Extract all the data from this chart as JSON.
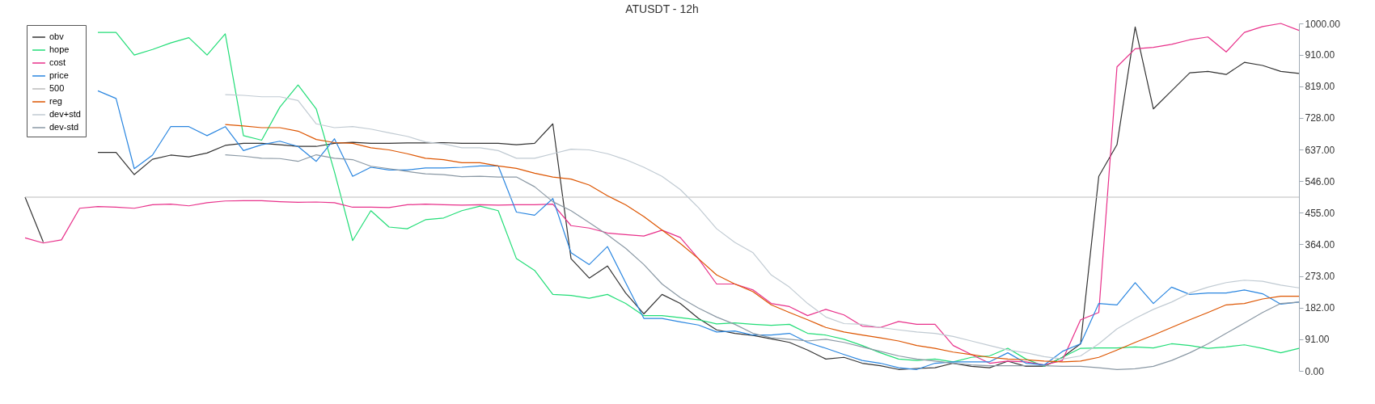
{
  "chart_data": {
    "type": "line",
    "title": "ATUSDT - 12h",
    "categories": [
      null,
      null,
      null,
      null,
      null,
      null,
      null,
      null,
      null,
      null,
      null,
      null,
      null,
      null,
      null,
      null,
      null,
      null,
      null,
      null,
      null,
      null,
      null,
      null,
      null,
      null,
      null,
      null,
      null,
      null,
      null,
      null,
      null,
      null,
      null,
      null,
      null,
      null,
      null,
      null,
      null,
      null,
      null,
      null,
      null,
      null,
      null,
      null,
      null,
      null,
      null,
      null,
      null,
      null,
      null,
      null,
      null,
      null,
      null,
      null,
      null,
      null,
      null,
      null,
      null,
      null,
      null,
      null,
      null,
      null,
      null
    ],
    "series": [
      {
        "name": "obv",
        "color": "#333333",
        "values": [
          500,
          371,
          null,
          null,
          629,
          629,
          565,
          609,
          621,
          616,
          627,
          649,
          655,
          655,
          651,
          646,
          646,
          655,
          658,
          655,
          655,
          656,
          656,
          657,
          655,
          655,
          655,
          651,
          655,
          711,
          323,
          267,
          302,
          224,
          164,
          220,
          194,
          151,
          118,
          108,
          102,
          92,
          82,
          60,
          34,
          39,
          22,
          15,
          4,
          7,
          9,
          22,
          13,
          9,
          28,
          13,
          13,
          39,
          78,
          560,
          651,
          990,
          754,
          806,
          858,
          862,
          853,
          888,
          879,
          862,
          856
        ]
      },
      {
        "name": "hope",
        "color": "#22dd77",
        "values": [
          null,
          null,
          null,
          null,
          974,
          974,
          909,
          925,
          944,
          959,
          909,
          970,
          677,
          664,
          759,
          823,
          754,
          573,
          375,
          461,
          414,
          409,
          435,
          440,
          461,
          474,
          461,
          323,
          289,
          220,
          217,
          209,
          220,
          194,
          159,
          159,
          153,
          147,
          135,
          138,
          134,
          131,
          134,
          108,
          103,
          91,
          73,
          52,
          34,
          30,
          34,
          26,
          39,
          43,
          65,
          34,
          13,
          39,
          65,
          66,
          66,
          69,
          66,
          78,
          73,
          65,
          69,
          75,
          65,
          52,
          65
        ]
      },
      {
        "name": "cost",
        "color": "#e8308a",
        "values": [
          383,
          368,
          377,
          468,
          473,
          471,
          468,
          478,
          480,
          475,
          484,
          489,
          490,
          490,
          487,
          485,
          486,
          484,
          471,
          471,
          470,
          478,
          480,
          478,
          477,
          478,
          477,
          478,
          478,
          480,
          418,
          411,
          397,
          392,
          388,
          405,
          384,
          323,
          250,
          250,
          233,
          194,
          185,
          159,
          177,
          161,
          129,
          125,
          142,
          134,
          134,
          73,
          47,
          22,
          28,
          26,
          17,
          30,
          147,
          168,
          875,
          927,
          931,
          940,
          953,
          961,
          918,
          974,
          991,
          1000,
          980
        ]
      },
      {
        "name": "price",
        "color": "#2a86e0",
        "values": [
          null,
          null,
          null,
          null,
          806,
          784,
          582,
          621,
          703,
          703,
          677,
          703,
          634,
          651,
          661,
          646,
          603,
          668,
          560,
          586,
          578,
          578,
          584,
          584,
          586,
          590,
          590,
          457,
          448,
          496,
          340,
          306,
          358,
          254,
          151,
          151,
          141,
          132,
          112,
          115,
          103,
          103,
          108,
          82,
          65,
          47,
          30,
          22,
          9,
          4,
          22,
          26,
          26,
          26,
          52,
          22,
          17,
          56,
          78,
          194,
          190,
          254,
          194,
          241,
          220,
          224,
          224,
          233,
          222,
          192,
          198
        ]
      },
      {
        "name": "500",
        "color": "#bbbbbb",
        "values": [
          500,
          500,
          500,
          500,
          500,
          500,
          500,
          500,
          500,
          500,
          500,
          500,
          500,
          500,
          500,
          500,
          500,
          500,
          500,
          500,
          500,
          500,
          500,
          500,
          500,
          500,
          500,
          500,
          500,
          500,
          500,
          500,
          500,
          500,
          500,
          500,
          500,
          500,
          500,
          500,
          500,
          500,
          500,
          500,
          500,
          500,
          500,
          500,
          500,
          500,
          500,
          500,
          500,
          500,
          500,
          500,
          500,
          500,
          500,
          500,
          500,
          500,
          500,
          500,
          500,
          500,
          500,
          500,
          500,
          500,
          500
        ]
      },
      {
        "name": "reg",
        "color": "#dd5500",
        "values": [
          null,
          null,
          null,
          null,
          null,
          null,
          null,
          null,
          null,
          null,
          null,
          709,
          705,
          700,
          700,
          690,
          666,
          657,
          655,
          642,
          636,
          625,
          612,
          608,
          599,
          599,
          590,
          583,
          569,
          558,
          552,
          535,
          504,
          478,
          444,
          405,
          367,
          323,
          276,
          250,
          228,
          190,
          168,
          147,
          125,
          112,
          103,
          95,
          86,
          73,
          65,
          54,
          47,
          39,
          34,
          32,
          28,
          26,
          28,
          39,
          60,
          82,
          103,
          125,
          147,
          168,
          190,
          194,
          207,
          215,
          215
        ]
      },
      {
        "name": "dev+std",
        "color": "#c0cad2",
        "values": [
          null,
          null,
          null,
          null,
          null,
          null,
          null,
          null,
          null,
          null,
          null,
          795,
          793,
          789,
          789,
          778,
          711,
          700,
          703,
          696,
          685,
          675,
          659,
          653,
          642,
          642,
          634,
          612,
          612,
          625,
          638,
          636,
          625,
          608,
          586,
          560,
          522,
          470,
          409,
          370,
          340,
          276,
          241,
          194,
          155,
          136,
          134,
          125,
          118,
          112,
          108,
          99,
          86,
          73,
          60,
          52,
          41,
          34,
          43,
          78,
          121,
          151,
          177,
          198,
          224,
          241,
          254,
          261,
          258,
          247,
          239
        ]
      },
      {
        "name": "dev-std",
        "color": "#8a98a4",
        "values": [
          null,
          null,
          null,
          null,
          null,
          null,
          null,
          null,
          null,
          null,
          null,
          622,
          618,
          612,
          611,
          603,
          622,
          612,
          608,
          589,
          582,
          574,
          567,
          565,
          559,
          560,
          558,
          558,
          530,
          487,
          461,
          427,
          392,
          353,
          306,
          250,
          211,
          181,
          155,
          134,
          108,
          95,
          91,
          86,
          91,
          82,
          69,
          56,
          43,
          34,
          28,
          22,
          17,
          15,
          15,
          15,
          15,
          13,
          13,
          9,
          4,
          6,
          13,
          30,
          52,
          78,
          108,
          138,
          168,
          194,
          198
        ]
      }
    ],
    "ylim": [
      0,
      1000
    ],
    "yticks": [
      {
        "value": 0,
        "label": "0.00"
      },
      {
        "value": 91,
        "label": "91.00"
      },
      {
        "value": 182,
        "label": "182.00"
      },
      {
        "value": 273,
        "label": "273.00"
      },
      {
        "value": 364,
        "label": "364.00"
      },
      {
        "value": 455,
        "label": "455.00"
      },
      {
        "value": 546,
        "label": "546.00"
      },
      {
        "value": 637,
        "label": "637.00"
      },
      {
        "value": 728,
        "label": "728.00"
      },
      {
        "value": 819,
        "label": "819.00"
      },
      {
        "value": 910,
        "label": "910.00"
      },
      {
        "value": 1000,
        "label": "1000.00"
      }
    ],
    "legend": "top left",
    "grid": false,
    "marker": "none",
    "line_style": "solid"
  }
}
